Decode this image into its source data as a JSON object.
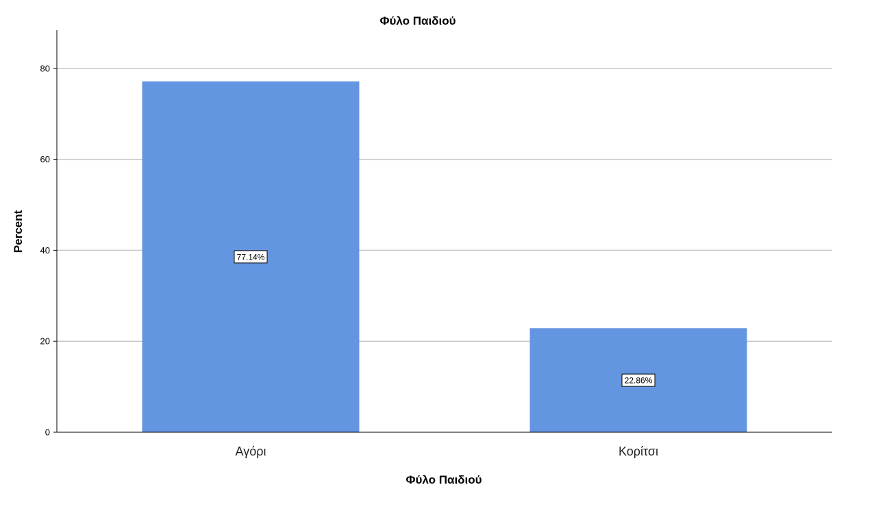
{
  "chart_data": {
    "type": "bar",
    "title": "Φύλο Παιδιού",
    "xlabel": "Φύλο Παιδιού",
    "ylabel": "Percent",
    "categories": [
      "Αγόρι",
      "Κορίτσι"
    ],
    "values": [
      77.14,
      22.86
    ],
    "data_labels": [
      "77.14%",
      "22.86%"
    ],
    "y_ticks": [
      0,
      20,
      40,
      60,
      80
    ],
    "y_tick_labels": [
      "0",
      "20",
      "40",
      "60",
      "80"
    ],
    "ylim": [
      0,
      88.4
    ],
    "grid": true,
    "legend": "none",
    "colors": {
      "bar": "#6495e0",
      "grid": "#c8c8c8",
      "axis": "#000000"
    }
  }
}
